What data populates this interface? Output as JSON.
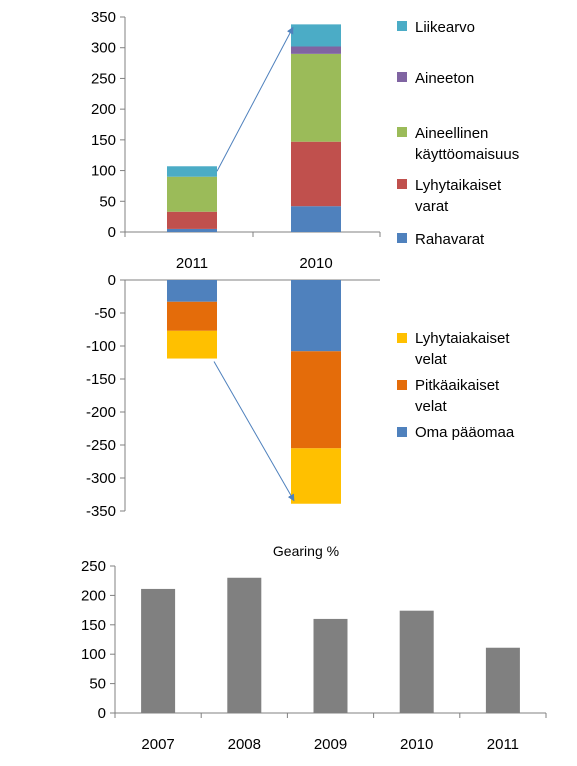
{
  "chart_data": [
    {
      "type": "bar",
      "stacked": true,
      "categories": [
        "2011",
        "2010"
      ],
      "series": [
        {
          "name": "Rahavarat",
          "values": [
            5,
            42
          ]
        },
        {
          "name": "Lyhytaikaiset varat",
          "values": [
            28,
            105
          ]
        },
        {
          "name": "Aineellinen käyttöomaisuus",
          "values": [
            57,
            143
          ]
        },
        {
          "name": "Aineeton",
          "values": [
            0,
            12
          ]
        },
        {
          "name": "Liikearvo",
          "values": [
            17,
            36
          ]
        }
      ],
      "legend_order": [
        "Liikearvo",
        "Aineeton",
        "Aineellinen käyttöomaisuus",
        "Lyhytaikaiset varat",
        "Rahavarat"
      ],
      "legend_lines": [
        [
          "Liikearvo"
        ],
        [
          "Aineeton"
        ],
        [
          "Aineellinen",
          "käyttöomaisuus"
        ],
        [
          "Lyhytaikaiset",
          "varat"
        ],
        [
          "Rahavarat"
        ]
      ],
      "colors": [
        "#4F81BD",
        "#C0504D",
        "#9BBB59",
        "#8064A2",
        "#4BACC6"
      ],
      "ylim": [
        0,
        350
      ],
      "yticks": [
        0,
        50,
        100,
        150,
        200,
        250,
        300,
        350
      ],
      "grid": false,
      "legend": "right",
      "annotation": "arrow from 2011 stack top to 2010 stack top"
    },
    {
      "type": "bar",
      "stacked": true,
      "categories": [
        "2011",
        "2010"
      ],
      "series": [
        {
          "name": "Oma pääomaa",
          "values": [
            -33,
            -108
          ]
        },
        {
          "name": "Pitkäaikaiset velat",
          "values": [
            -44,
            -147
          ]
        },
        {
          "name": "Lyhytaiakaiset velat",
          "values": [
            -42,
            -84
          ]
        }
      ],
      "legend_order": [
        "Lyhytaiakaiset velat",
        "Pitkäaikaiset velat",
        "Oma pääomaa"
      ],
      "legend_lines": [
        [
          "Lyhytaiakaiset",
          "velat"
        ],
        [
          "Pitkäaikaiset",
          "velat"
        ],
        [
          "Oma pääomaa"
        ]
      ],
      "colors": [
        "#4F81BD",
        "#E46C0A",
        "#FFC000"
      ],
      "ylim": [
        -350,
        0
      ],
      "yticks": [
        0,
        -50,
        -100,
        -150,
        -200,
        -250,
        -300,
        -350
      ],
      "grid": false,
      "legend": "right",
      "annotation": "arrow from 2011 stack bottom to 2010 stack bottom"
    },
    {
      "type": "bar",
      "title": "Gearing %",
      "categories": [
        "2007",
        "2008",
        "2009",
        "2010",
        "2011"
      ],
      "values": [
        211,
        230,
        160,
        174,
        111
      ],
      "color": "#808080",
      "ylim": [
        0,
        250
      ],
      "yticks": [
        0,
        50,
        100,
        150,
        200,
        250
      ],
      "grid": false,
      "legend": "none"
    }
  ]
}
